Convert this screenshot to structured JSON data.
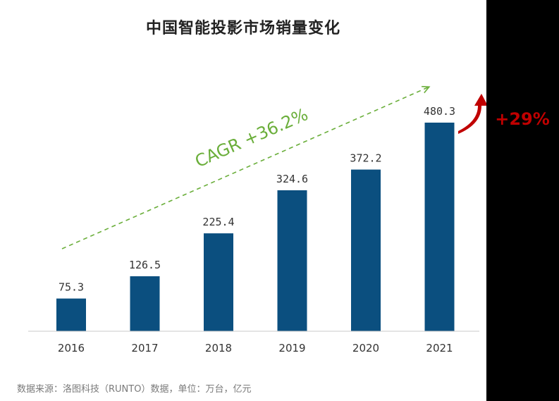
{
  "title": "中国智能投影市场销量变化",
  "source_note": "数据来源：洛图科技（RUNTO）数据，单位：万台，亿元",
  "cagr_label": "CAGR +36.2%",
  "growth_label": "+29%",
  "colors": {
    "bar": "#0b4f7f",
    "cagr": "#6aae3a",
    "growth": "#c00000",
    "panel": "#000000"
  },
  "chart_data": {
    "type": "bar",
    "title": "中国智能投影市场销量变化",
    "xlabel": "",
    "ylabel": "",
    "categories": [
      "2016",
      "2017",
      "2018",
      "2019",
      "2020",
      "2021"
    ],
    "values": [
      75.3,
      126.5,
      225.4,
      324.6,
      372.2,
      480.3
    ],
    "value_labels": [
      "75.3",
      "126.5",
      "225.4",
      "324.6",
      "372.2",
      "480.3"
    ],
    "ylim": [
      0,
      480.3
    ],
    "grid": false,
    "legend": "none",
    "annotations": [
      "CAGR +36.2%",
      "+29%"
    ]
  }
}
